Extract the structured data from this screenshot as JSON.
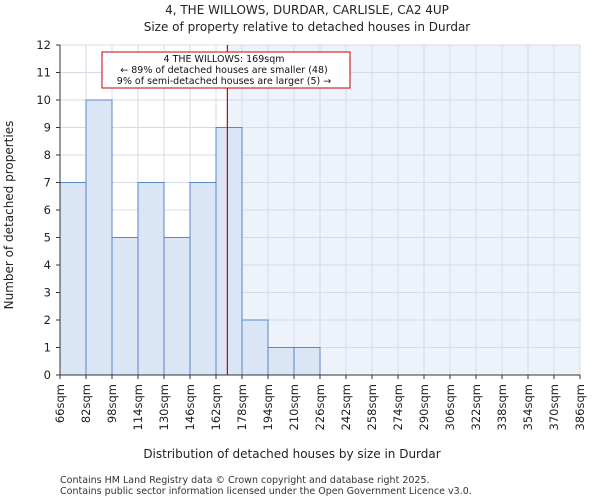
{
  "chart_data": {
    "type": "bar",
    "title": "4, THE WILLOWS, DURDAR, CARLISLE, CA2 4UP",
    "subtitle": "Size of property relative to detached houses in Durdar",
    "xlabel": "Distribution of detached houses by size in Durdar",
    "ylabel": "Number of detached properties",
    "bin_edges": [
      66,
      82,
      98,
      114,
      130,
      146,
      162,
      178,
      194,
      210,
      226,
      242,
      258,
      274,
      290,
      306,
      322,
      338,
      354,
      370,
      386
    ],
    "x_tick_labels": [
      "66sqm",
      "82sqm",
      "98sqm",
      "114sqm",
      "130sqm",
      "146sqm",
      "162sqm",
      "178sqm",
      "194sqm",
      "210sqm",
      "226sqm",
      "242sqm",
      "258sqm",
      "274sqm",
      "290sqm",
      "306sqm",
      "322sqm",
      "338sqm",
      "354sqm",
      "370sqm",
      "386sqm"
    ],
    "values": [
      7,
      10,
      5,
      7,
      5,
      7,
      9,
      2,
      1,
      1,
      0,
      0,
      0,
      0,
      0,
      0,
      0,
      0,
      0,
      0
    ],
    "ylim": [
      0,
      12
    ],
    "y_ticks": [
      0,
      1,
      2,
      3,
      4,
      5,
      6,
      7,
      8,
      9,
      10,
      11,
      12
    ],
    "grid": true,
    "marker_value": 169,
    "annotation": {
      "line1": "4 THE WILLOWS: 169sqm",
      "line2": "← 89% of detached houses are smaller (48)",
      "line3": "9% of semi-detached houses are larger (5) →"
    },
    "colors": {
      "bar_fill": "#dae5f5",
      "bar_stroke": "#5a86c8",
      "marker": "#cc0000",
      "shade": "#eef3fb",
      "grid": "#d4dbe6"
    }
  },
  "footer": {
    "line1": "Contains HM Land Registry data © Crown copyright and database right 2025.",
    "line2": "Contains public sector information licensed under the Open Government Licence v3.0."
  }
}
